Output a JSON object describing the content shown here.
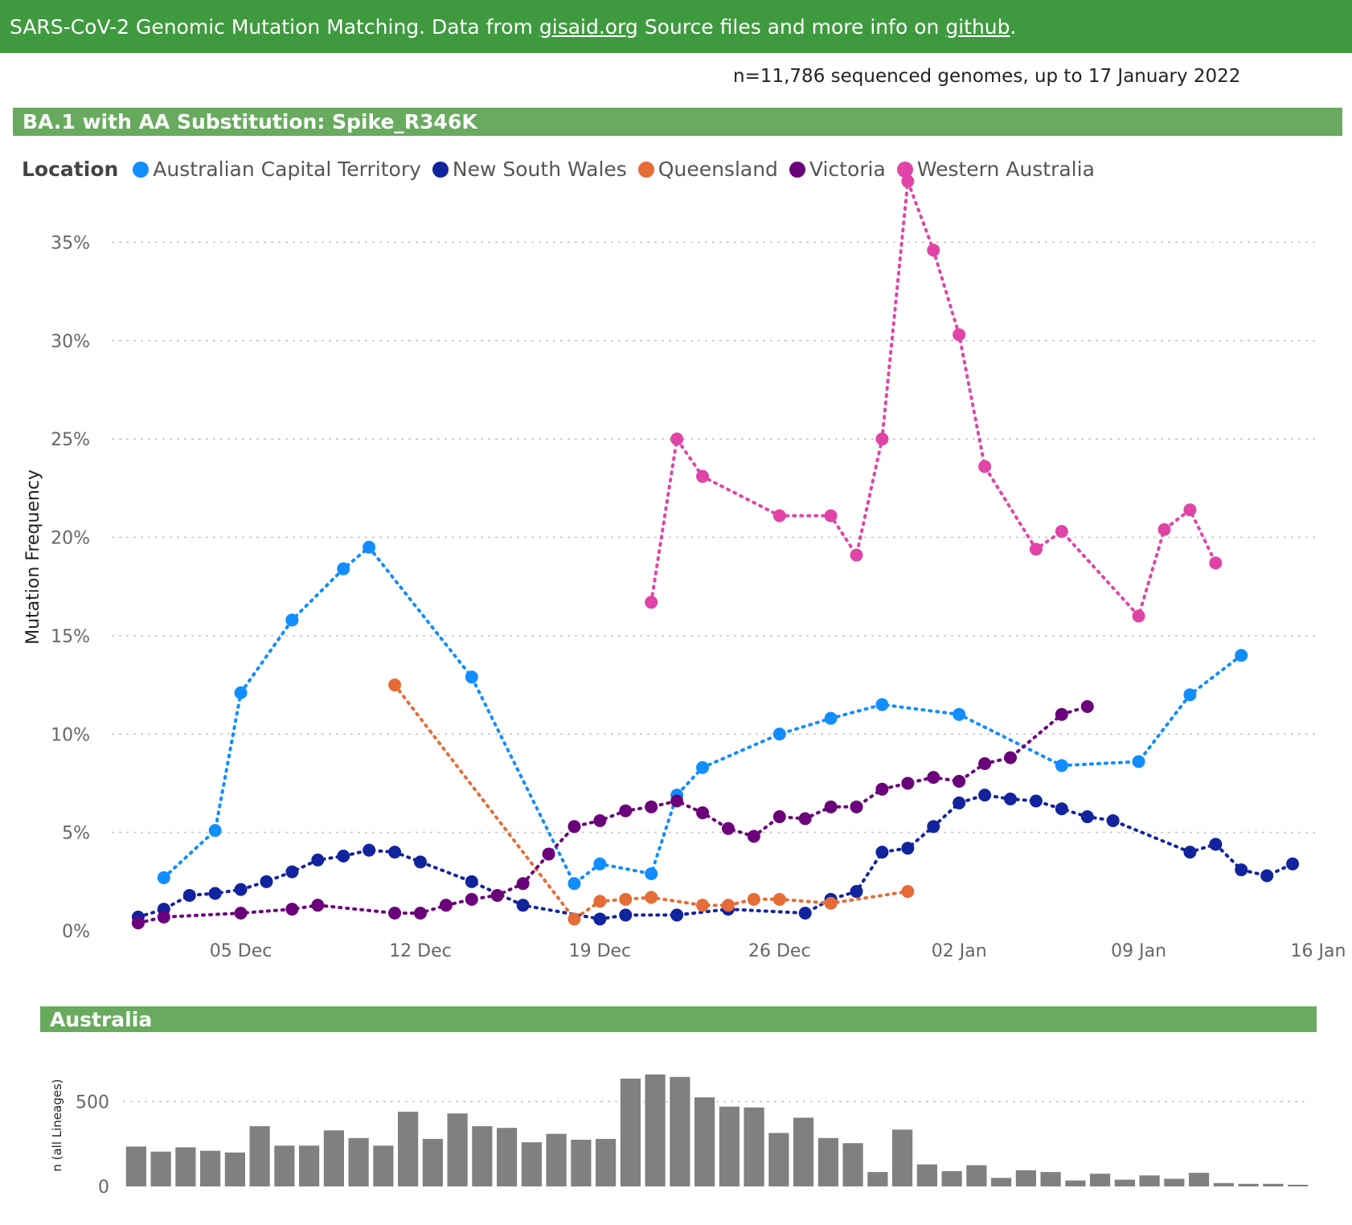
{
  "header": {
    "text_before": "SARS-CoV-2 Genomic Mutation Matching. Data from",
    "link1": "gisaid.org",
    "text_middle": "Source files and more info on",
    "link2": "github",
    "text_after": "."
  },
  "sample_note": "n=11,786 sequenced genomes, up to 17 January 2022",
  "panel_title": "BA.1 with AA Substitution: Spike_R346K",
  "bottom_panel_title": "Australia",
  "colors": {
    "header_bg": "#3f9a3f",
    "panel_bg": "#68ab5e",
    "bar": "#808080"
  },
  "chart_data": [
    {
      "type": "line",
      "legend_title": "Location",
      "legend_placement": "top-left",
      "ylabel": "Mutation Frequency",
      "xlabel": "",
      "x_type": "date",
      "xlim": [
        "2021-11-30",
        "2022-01-16"
      ],
      "x_ticks": [
        "2021-12-05",
        "2021-12-12",
        "2021-12-19",
        "2021-12-26",
        "2022-01-02",
        "2022-01-09",
        "2022-01-16"
      ],
      "x_tick_labels": [
        "05 Dec",
        "12 Dec",
        "19 Dec",
        "26 Dec",
        "02 Jan",
        "09 Jan",
        "16 Jan"
      ],
      "ylim": [
        0,
        0.38
      ],
      "y_ticks": [
        0,
        0.05,
        0.1,
        0.15,
        0.2,
        0.25,
        0.3,
        0.35
      ],
      "y_tick_labels": [
        "0%",
        "5%",
        "10%",
        "15%",
        "20%",
        "25%",
        "30%",
        "35%"
      ],
      "grid": "horizontal dotted",
      "line_style": "dotted",
      "series": [
        {
          "name": "Australian Capital Territory",
          "color": "#118dff",
          "x": [
            "2021-12-02",
            "2021-12-04",
            "2021-12-05",
            "2021-12-07",
            "2021-12-09",
            "2021-12-10",
            "2021-12-14",
            "2021-12-18",
            "2021-12-19",
            "2021-12-21",
            "2021-12-22",
            "2021-12-23",
            "2021-12-26",
            "2021-12-28",
            "2021-12-30",
            "2022-01-02",
            "2022-01-06",
            "2022-01-09",
            "2022-01-11",
            "2022-01-13"
          ],
          "y": [
            0.027,
            0.051,
            0.121,
            0.158,
            0.184,
            0.195,
            0.129,
            0.024,
            0.034,
            0.029,
            0.069,
            0.083,
            0.1,
            0.108,
            0.115,
            0.11,
            0.084,
            0.086,
            0.12,
            0.14
          ]
        },
        {
          "name": "New South Wales",
          "color": "#12239e",
          "x": [
            "2021-12-01",
            "2021-12-02",
            "2021-12-03",
            "2021-12-04",
            "2021-12-05",
            "2021-12-06",
            "2021-12-07",
            "2021-12-08",
            "2021-12-09",
            "2021-12-10",
            "2021-12-11",
            "2021-12-12",
            "2021-12-14",
            "2021-12-16",
            "2021-12-19",
            "2021-12-20",
            "2021-12-22",
            "2021-12-24",
            "2021-12-27",
            "2021-12-28",
            "2021-12-29",
            "2021-12-30",
            "2021-12-31",
            "2022-01-01",
            "2022-01-02",
            "2022-01-03",
            "2022-01-04",
            "2022-01-05",
            "2022-01-06",
            "2022-01-07",
            "2022-01-08",
            "2022-01-11",
            "2022-01-12",
            "2022-01-13",
            "2022-01-14",
            "2022-01-15"
          ],
          "y": [
            0.007,
            0.011,
            0.018,
            0.019,
            0.021,
            0.025,
            0.03,
            0.036,
            0.038,
            0.041,
            0.04,
            0.035,
            0.025,
            0.013,
            0.006,
            0.008,
            0.008,
            0.011,
            0.009,
            0.016,
            0.02,
            0.04,
            0.042,
            0.053,
            0.065,
            0.069,
            0.067,
            0.066,
            0.062,
            0.058,
            0.056,
            0.04,
            0.044,
            0.031,
            0.028,
            0.034
          ]
        },
        {
          "name": "Queensland",
          "color": "#e66c37",
          "x": [
            "2021-12-11",
            "2021-12-18",
            "2021-12-19",
            "2021-12-20",
            "2021-12-21",
            "2021-12-23",
            "2021-12-24",
            "2021-12-25",
            "2021-12-26",
            "2021-12-28",
            "2021-12-31"
          ],
          "y": [
            0.125,
            0.006,
            0.015,
            0.016,
            0.017,
            0.013,
            0.013,
            0.016,
            0.016,
            0.014,
            0.02
          ]
        },
        {
          "name": "Victoria",
          "color": "#6b007b",
          "x": [
            "2021-12-01",
            "2021-12-02",
            "2021-12-05",
            "2021-12-07",
            "2021-12-08",
            "2021-12-11",
            "2021-12-12",
            "2021-12-13",
            "2021-12-14",
            "2021-12-15",
            "2021-12-16",
            "2021-12-17",
            "2021-12-18",
            "2021-12-19",
            "2021-12-20",
            "2021-12-21",
            "2021-12-22",
            "2021-12-23",
            "2021-12-24",
            "2021-12-25",
            "2021-12-26",
            "2021-12-27",
            "2021-12-28",
            "2021-12-29",
            "2021-12-30",
            "2021-12-31",
            "2022-01-01",
            "2022-01-02",
            "2022-01-03",
            "2022-01-04",
            "2022-01-06",
            "2022-01-07"
          ],
          "y": [
            0.004,
            0.007,
            0.009,
            0.011,
            0.013,
            0.009,
            0.009,
            0.013,
            0.016,
            0.018,
            0.024,
            0.039,
            0.053,
            0.056,
            0.061,
            0.063,
            0.066,
            0.06,
            0.052,
            0.048,
            0.058,
            0.057,
            0.063,
            0.063,
            0.072,
            0.075,
            0.078,
            0.076,
            0.085,
            0.088,
            0.11,
            0.114
          ]
        },
        {
          "name": "Western Australia",
          "color": "#e044a7",
          "x": [
            "2021-12-21",
            "2021-12-22",
            "2021-12-23",
            "2021-12-26",
            "2021-12-28",
            "2021-12-29",
            "2021-12-30",
            "2021-12-31",
            "2022-01-01",
            "2022-01-02",
            "2022-01-03",
            "2022-01-05",
            "2022-01-06",
            "2022-01-09",
            "2022-01-10",
            "2022-01-11",
            "2022-01-12"
          ],
          "y": [
            0.167,
            0.25,
            0.231,
            0.211,
            0.211,
            0.191,
            0.25,
            0.381,
            0.346,
            0.303,
            0.236,
            0.194,
            0.203,
            0.16,
            0.204,
            0.214,
            0.187
          ]
        }
      ]
    },
    {
      "type": "bar",
      "ylabel": "n (all Lineages)",
      "xlabel": "",
      "x_type": "date",
      "ylim": [
        0,
        720
      ],
      "y_ticks": [
        0,
        500
      ],
      "y_tick_labels": [
        "0",
        "500"
      ],
      "grid": "horizontal dotted",
      "x_start": "2021-12-01",
      "x_end": "2022-01-16",
      "values": [
        235,
        205,
        230,
        210,
        200,
        355,
        240,
        240,
        330,
        285,
        240,
        440,
        280,
        430,
        355,
        345,
        260,
        310,
        275,
        280,
        635,
        660,
        645,
        525,
        470,
        465,
        315,
        405,
        285,
        255,
        85,
        335,
        130,
        90,
        125,
        50,
        95,
        85,
        35,
        75,
        40,
        65,
        45,
        80,
        20,
        15,
        15,
        10
      ]
    }
  ]
}
